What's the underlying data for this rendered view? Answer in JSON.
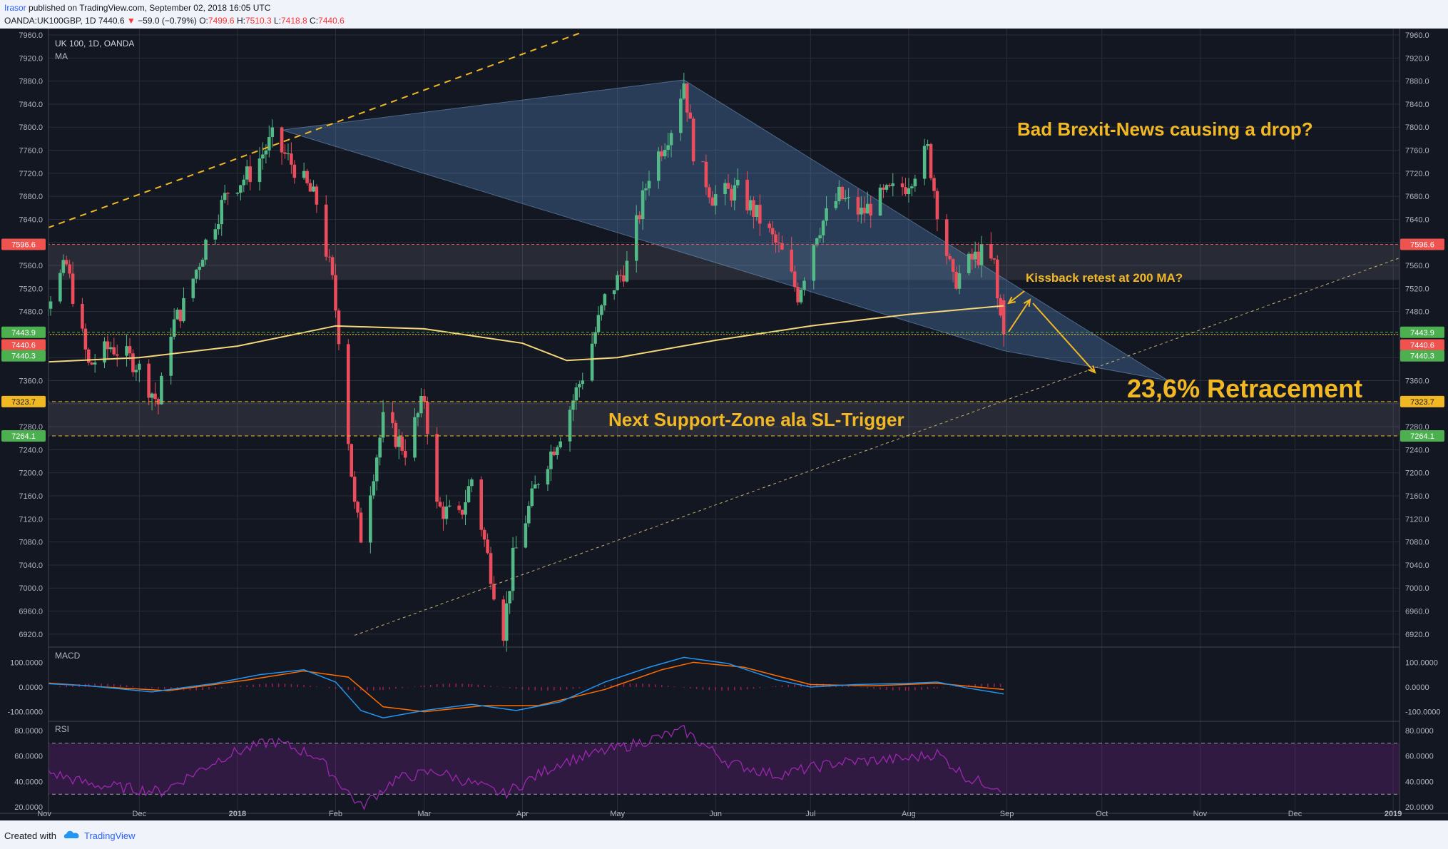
{
  "header": {
    "author": "Irasor",
    "published": "published on TradingView.com, September 02, 2018 16:05 UTC",
    "symbol": "OANDA:UK100GBP, 1D",
    "last": "7440.6",
    "change": "−59.0 (−0.79%)",
    "o_label": "O:",
    "o": "7499.6",
    "h_label": "H:",
    "h": "7510.3",
    "l_label": "L:",
    "l": "7418.8",
    "c_label": "C:",
    "c": "7440.6"
  },
  "legend": {
    "title": "UK 100, 1D, OANDA",
    "indicator": "MA"
  },
  "footer": {
    "created": "Created with",
    "brand": "TradingView"
  },
  "colors": {
    "background": "#131722",
    "up": "#53b987",
    "down": "#eb4d5c",
    "ma": "#f5d77a",
    "annotation": "#f2b824",
    "price_red": "#ef5350",
    "price_green": "#4caf50",
    "macd": "#2196f3",
    "signal": "#ff6d00",
    "hist": "#e91e63",
    "rsi": "#9c27b0"
  },
  "price_axis": {
    "ticks": [
      "7960.0",
      "7920.0",
      "7880.0",
      "7840.0",
      "7800.0",
      "7760.0",
      "7720.0",
      "7680.0",
      "7640.0",
      "7600.0",
      "7560.0",
      "7520.0",
      "7480.0",
      "7440.0",
      "7400.0",
      "7360.0",
      "7320.0",
      "7280.0",
      "7240.0",
      "7200.0",
      "7160.0",
      "7120.0",
      "7080.0",
      "7040.0",
      "7000.0",
      "6960.0",
      "6920.0"
    ],
    "badges": [
      {
        "label": "7596.6",
        "value": 7596.6,
        "color": "#ef5350"
      },
      {
        "label": "7443.9",
        "value": 7443.9,
        "color": "#4caf50"
      },
      {
        "label": "7440.6",
        "value": 7440.6,
        "color": "#ef5350"
      },
      {
        "label": "7440.3",
        "value": 7440.3,
        "color": "#4caf50"
      },
      {
        "label": "7323.7",
        "value": 7323.7,
        "color": "#f2b824"
      },
      {
        "label": "7264.1",
        "value": 7264.1,
        "color": "#4caf50"
      }
    ]
  },
  "time_axis": [
    "Nov",
    "Dec",
    "2018",
    "Feb",
    "Mar",
    "Apr",
    "May",
    "Jun",
    "Jul",
    "Aug",
    "Sep",
    "Oct",
    "Nov",
    "Dec",
    "2019"
  ],
  "macd_axis": [
    "100.0000",
    "0.0000",
    "-100.0000"
  ],
  "rsi_axis": [
    "80.0000",
    "60.0000",
    "40.0000",
    "20.0000"
  ],
  "panels": {
    "macd_label": "MACD",
    "rsi_label": "RSI"
  },
  "annotations": {
    "brexit": "Bad Brexit-News causing a drop?",
    "kissback": "Kissback retest at 200 MA?",
    "retracement": "23,6% Retracement",
    "support": "Next Support-Zone ala SL-Trigger"
  },
  "chart_data": {
    "type": "candlestick",
    "title": "UK 100, 1D, OANDA",
    "x_range": [
      "2017-10-23",
      "2019-01-01"
    ],
    "y_range": [
      6900,
      7965
    ],
    "closes": [
      {
        "date": "2017-10-23",
        "close": 7525
      },
      {
        "date": "2017-11-01",
        "close": 7490
      },
      {
        "date": "2017-11-08",
        "close": 7560
      },
      {
        "date": "2017-11-15",
        "close": 7385
      },
      {
        "date": "2017-11-22",
        "close": 7420
      },
      {
        "date": "2017-11-30",
        "close": 7390
      },
      {
        "date": "2017-12-07",
        "close": 7320
      },
      {
        "date": "2017-12-11",
        "close": 7450
      },
      {
        "date": "2017-12-15",
        "close": 7490
      },
      {
        "date": "2017-12-22",
        "close": 7600
      },
      {
        "date": "2017-12-29",
        "close": 7690
      },
      {
        "date": "2018-01-05",
        "close": 7720
      },
      {
        "date": "2018-01-12",
        "close": 7780
      },
      {
        "date": "2018-01-19",
        "close": 7730
      },
      {
        "date": "2018-01-26",
        "close": 7670
      },
      {
        "date": "2018-01-31",
        "close": 7530
      },
      {
        "date": "2018-02-02",
        "close": 7440
      },
      {
        "date": "2018-02-07",
        "close": 7140
      },
      {
        "date": "2018-02-09",
        "close": 7090
      },
      {
        "date": "2018-02-16",
        "close": 7290
      },
      {
        "date": "2018-02-23",
        "close": 7240
      },
      {
        "date": "2018-03-01",
        "close": 7330
      },
      {
        "date": "2018-03-05",
        "close": 7140
      },
      {
        "date": "2018-03-12",
        "close": 7120
      },
      {
        "date": "2018-03-16",
        "close": 7190
      },
      {
        "date": "2018-03-23",
        "close": 7000
      },
      {
        "date": "2018-03-26",
        "close": 6925
      },
      {
        "date": "2018-03-29",
        "close": 7050
      },
      {
        "date": "2018-04-06",
        "close": 7190
      },
      {
        "date": "2018-04-13",
        "close": 7270
      },
      {
        "date": "2018-04-20",
        "close": 7370
      },
      {
        "date": "2018-04-27",
        "close": 7500
      },
      {
        "date": "2018-05-04",
        "close": 7560
      },
      {
        "date": "2018-05-11",
        "close": 7720
      },
      {
        "date": "2018-05-18",
        "close": 7800
      },
      {
        "date": "2018-05-22",
        "close": 7880
      },
      {
        "date": "2018-05-25",
        "close": 7760
      },
      {
        "date": "2018-05-31",
        "close": 7680
      },
      {
        "date": "2018-06-08",
        "close": 7690
      },
      {
        "date": "2018-06-15",
        "close": 7640
      },
      {
        "date": "2018-06-22",
        "close": 7580
      },
      {
        "date": "2018-06-27",
        "close": 7510
      },
      {
        "date": "2018-07-03",
        "close": 7620
      },
      {
        "date": "2018-07-10",
        "close": 7680
      },
      {
        "date": "2018-07-17",
        "close": 7650
      },
      {
        "date": "2018-07-24",
        "close": 7680
      },
      {
        "date": "2018-07-31",
        "close": 7700
      },
      {
        "date": "2018-08-07",
        "close": 7760
      },
      {
        "date": "2018-08-10",
        "close": 7660
      },
      {
        "date": "2018-08-15",
        "close": 7530
      },
      {
        "date": "2018-08-21",
        "close": 7570
      },
      {
        "date": "2018-08-24",
        "close": 7580
      },
      {
        "date": "2018-08-28",
        "close": 7560
      },
      {
        "date": "2018-08-29",
        "close": 7500
      },
      {
        "date": "2018-08-31",
        "close": 7440.6
      }
    ],
    "ma": [
      {
        "date": "2017-10-23",
        "value": 7390
      },
      {
        "date": "2017-12-01",
        "value": 7400
      },
      {
        "date": "2018-01-01",
        "value": 7420
      },
      {
        "date": "2018-02-01",
        "value": 7455
      },
      {
        "date": "2018-03-01",
        "value": 7450
      },
      {
        "date": "2018-04-01",
        "value": 7425
      },
      {
        "date": "2018-04-15",
        "value": 7395
      },
      {
        "date": "2018-05-01",
        "value": 7400
      },
      {
        "date": "2018-06-01",
        "value": 7430
      },
      {
        "date": "2018-07-01",
        "value": 7455
      },
      {
        "date": "2018-08-01",
        "value": 7475
      },
      {
        "date": "2018-08-31",
        "value": 7490
      }
    ],
    "levels": [
      7596.6,
      7443.9,
      7440.6,
      7440.3,
      7323.7,
      7264.1
    ],
    "macd": {
      "y_range": [
        -130,
        150
      ]
    },
    "rsi": {
      "y_range": [
        15,
        85
      ],
      "bands": [
        30,
        70
      ]
    }
  }
}
